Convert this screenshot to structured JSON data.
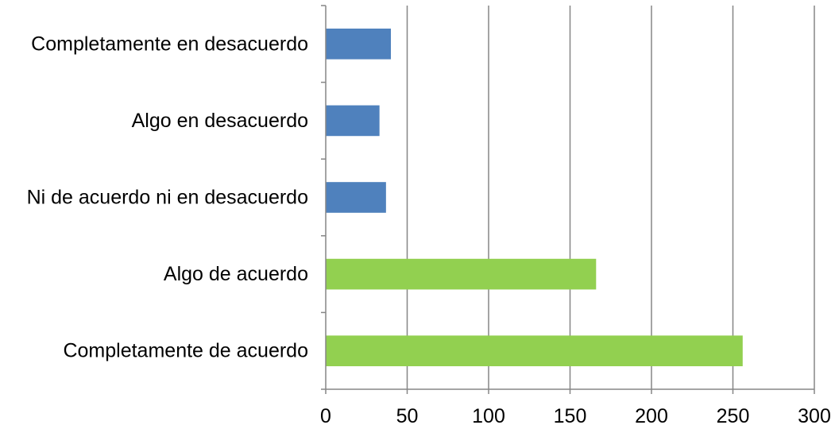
{
  "chart_data": {
    "type": "bar",
    "orientation": "horizontal",
    "categories": [
      "Completamente en desacuerdo",
      "Algo en desacuerdo",
      "Ni de acuerdo ni en desacuerdo",
      "Algo de acuerdo",
      "Completamente de acuerdo"
    ],
    "values": [
      40,
      33,
      37,
      166,
      256
    ],
    "bar_colors": [
      "#4f81bd",
      "#4f81bd",
      "#4f81bd",
      "#92d050",
      "#92d050"
    ],
    "xlim": [
      0,
      300
    ],
    "x_ticks": [
      0,
      50,
      100,
      150,
      200,
      250,
      300
    ],
    "x_tick_labels": [
      "0",
      "50",
      "100",
      "150",
      "200",
      "250",
      "300"
    ],
    "grid": "vertical",
    "legend": "none",
    "title": "",
    "xlabel": "",
    "ylabel": ""
  }
}
